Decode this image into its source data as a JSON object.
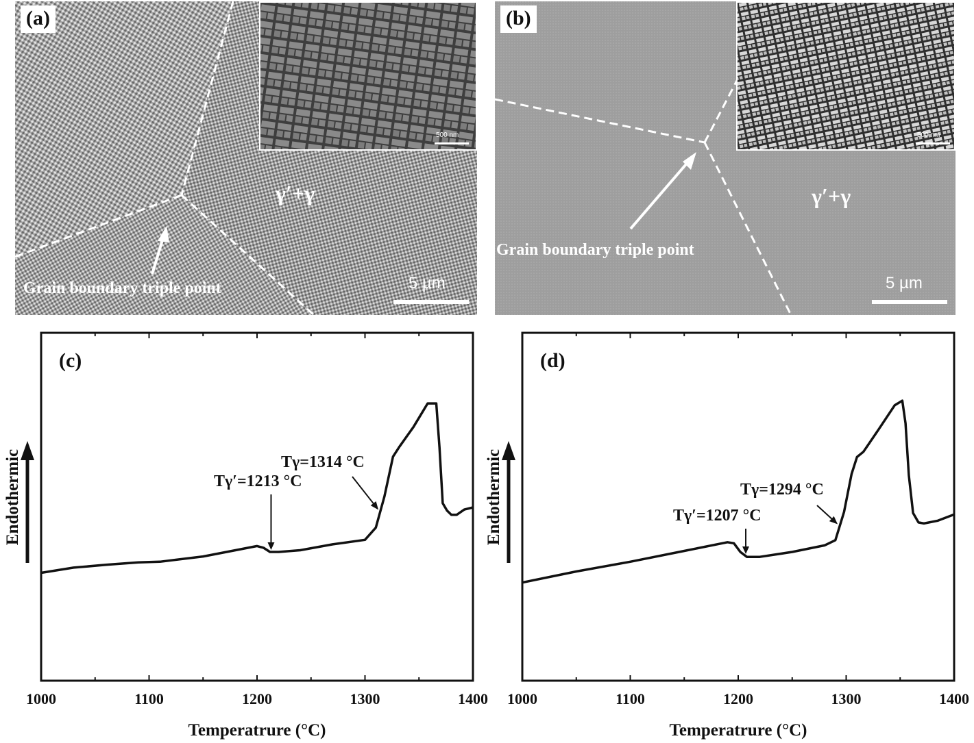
{
  "panels": {
    "a": {
      "label": "(a)",
      "phase": "γ′+γ",
      "annotation": "Grain boundary triple point",
      "scale_bar": "5 µm",
      "inset_scale_bar": "500 nm"
    },
    "b": {
      "label": "(b)",
      "phase": "γ′+γ",
      "annotation": "Grain boundary triple point",
      "scale_bar": "5 µm",
      "inset_scale_bar": "500 nm"
    }
  },
  "chart_data": [
    {
      "type": "line",
      "panel_label": "(c)",
      "xlabel": "Temperatrure (°C)",
      "ylabel": "Endothermic",
      "xlim": [
        1000,
        1400
      ],
      "xticks": [
        1000,
        1100,
        1200,
        1300,
        1400
      ],
      "ylim": [
        0,
        100
      ],
      "yticks_shown": false,
      "series": [
        {
          "x": [
            1000,
            1030,
            1060,
            1090,
            1110,
            1150,
            1180,
            1200,
            1206,
            1212,
            1220,
            1240,
            1270,
            1300,
            1310,
            1318,
            1326,
            1332,
            1345,
            1358,
            1366,
            1369,
            1372,
            1376,
            1380,
            1385,
            1392,
            1400
          ],
          "y": [
            31,
            32.5,
            33.3,
            34,
            34.2,
            35.7,
            37.5,
            38.7,
            38.2,
            37,
            37,
            37.5,
            39.2,
            40.5,
            44,
            53,
            64.4,
            67.3,
            73,
            79.7,
            79.7,
            67,
            51,
            48.9,
            47.7,
            47.7,
            49.2,
            49.8
          ]
        }
      ],
      "annotations": [
        {
          "text": "Tγ′=1213 °C",
          "x": 1213
        },
        {
          "text": "Tγ=1314 °C",
          "x": 1314
        }
      ]
    },
    {
      "type": "line",
      "panel_label": "(d)",
      "xlabel": "Temperatrure (°C)",
      "ylabel": "Endothermic",
      "xlim": [
        1000,
        1400
      ],
      "xticks": [
        1000,
        1100,
        1200,
        1300,
        1400
      ],
      "ylim": [
        0,
        100
      ],
      "yticks_shown": false,
      "series": [
        {
          "x": [
            1000,
            1050,
            1100,
            1150,
            1190,
            1196,
            1202,
            1208,
            1220,
            1250,
            1280,
            1290,
            1298,
            1305,
            1310,
            1316,
            1330,
            1345,
            1352,
            1355,
            1358,
            1362,
            1367,
            1372,
            1385,
            1400
          ],
          "y": [
            28.2,
            31.4,
            34.2,
            37.3,
            39.8,
            39.5,
            37,
            35.6,
            35.6,
            37,
            38.9,
            40.4,
            48.5,
            59.4,
            64.3,
            65.8,
            72.2,
            79.2,
            80.5,
            74,
            59.1,
            48.2,
            45.5,
            45.2,
            46,
            47.8
          ]
        }
      ],
      "annotations": [
        {
          "text": "Tγ′=1207 °C",
          "x": 1207
        },
        {
          "text": "Tγ=1294 °C",
          "x": 1294
        }
      ]
    }
  ]
}
